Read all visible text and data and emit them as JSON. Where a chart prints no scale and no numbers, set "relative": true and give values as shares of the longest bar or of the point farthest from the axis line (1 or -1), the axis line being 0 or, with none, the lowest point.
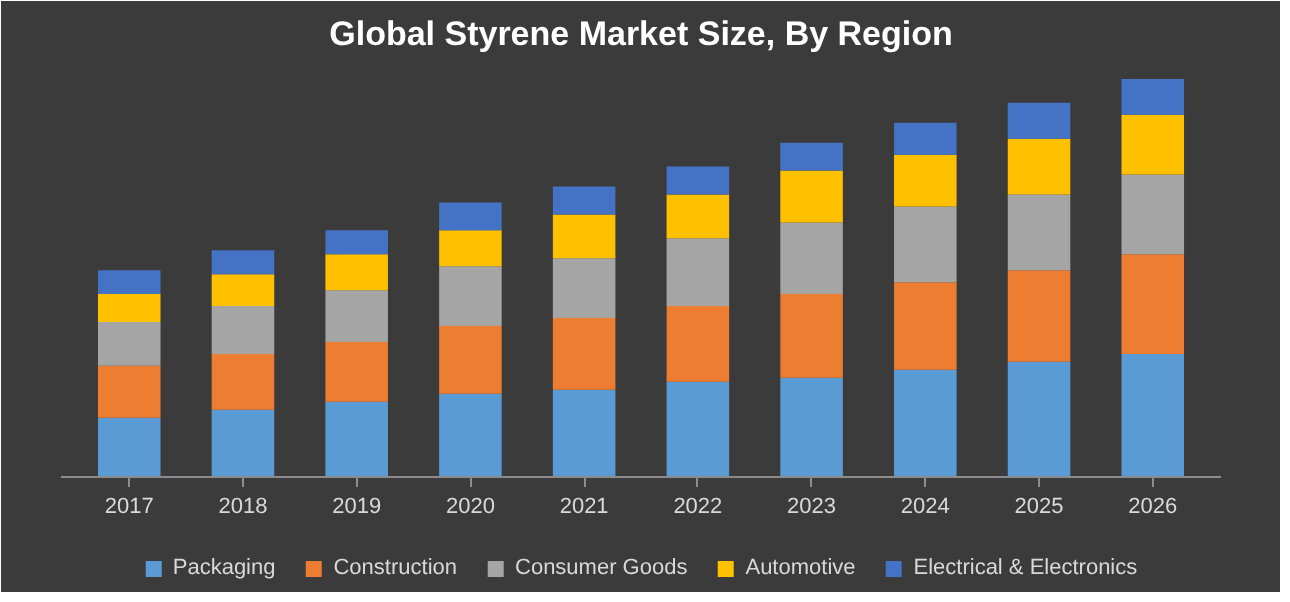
{
  "chart_data": {
    "type": "bar",
    "title": "Global Styrene Market Size, By Region",
    "relative": true,
    "stacked": true,
    "legend": "bottom",
    "grid": false,
    "categories": [
      "2017",
      "2018",
      "2019",
      "2020",
      "2021",
      "2022",
      "2023",
      "2024",
      "2025",
      "2026"
    ],
    "series": [
      {
        "name": "Packaging",
        "color": "#5b9bd5",
        "values": [
          0.15,
          0.17,
          0.19,
          0.21,
          0.22,
          0.24,
          0.25,
          0.27,
          0.29,
          0.31
        ]
      },
      {
        "name": "Construction",
        "color": "#ed7d31",
        "values": [
          0.13,
          0.14,
          0.15,
          0.17,
          0.18,
          0.19,
          0.21,
          0.22,
          0.23,
          0.25
        ]
      },
      {
        "name": "Consumer Goods",
        "color": "#a5a5a5",
        "values": [
          0.11,
          0.12,
          0.13,
          0.15,
          0.15,
          0.17,
          0.18,
          0.19,
          0.19,
          0.2
        ]
      },
      {
        "name": "Automotive",
        "color": "#ffc000",
        "values": [
          0.07,
          0.08,
          0.09,
          0.09,
          0.11,
          0.11,
          0.13,
          0.13,
          0.14,
          0.15
        ]
      },
      {
        "name": "Electrical & Electronics",
        "color": "#4472c4",
        "values": [
          0.06,
          0.06,
          0.06,
          0.07,
          0.07,
          0.07,
          0.07,
          0.08,
          0.09,
          0.09
        ]
      }
    ]
  }
}
